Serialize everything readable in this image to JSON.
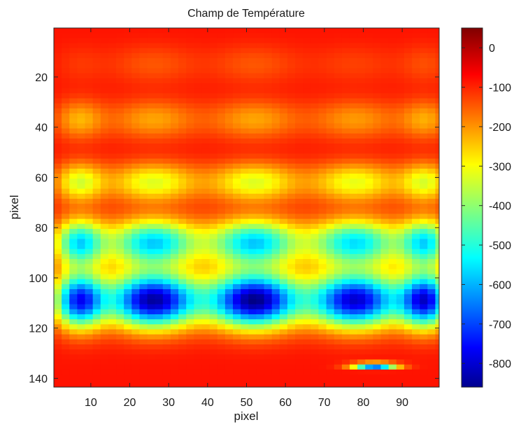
{
  "chart_data": {
    "type": "heatmap",
    "title": "Champ de Température",
    "xlabel": "pixel",
    "ylabel": "pixel",
    "x_range": [
      0.5,
      99.5
    ],
    "y_range": [
      0.5,
      143.5
    ],
    "y_reversed": true,
    "x_ticks": [
      10,
      20,
      30,
      40,
      50,
      60,
      70,
      80,
      90
    ],
    "y_ticks": [
      20,
      40,
      60,
      80,
      100,
      120,
      140
    ],
    "grid": false,
    "colormap": "jet",
    "colorbar": {
      "range": [
        -860,
        50
      ],
      "ticks": [
        0,
        -100,
        -200,
        -300,
        -400,
        -500,
        -600,
        -700,
        -800
      ]
    },
    "background_value": -80,
    "column_centers": [
      7,
      26,
      52,
      78,
      96
    ],
    "row_bands": [
      {
        "y": 15,
        "values": [
          -110,
          -140,
          -140,
          -120,
          -130
        ]
      },
      {
        "y": 37,
        "values": [
          -220,
          -210,
          -210,
          -200,
          -210
        ]
      },
      {
        "y": 62,
        "values": [
          -320,
          -320,
          -320,
          -310,
          -310
        ]
      },
      {
        "y": 86,
        "values": [
          -530,
          -560,
          -560,
          -540,
          -520
        ]
      },
      {
        "y": 109,
        "values": [
          -710,
          -830,
          -850,
          -790,
          -740
        ]
      }
    ],
    "annotations": [
      {
        "x": 83,
        "y": 135,
        "value": -750
      }
    ]
  }
}
